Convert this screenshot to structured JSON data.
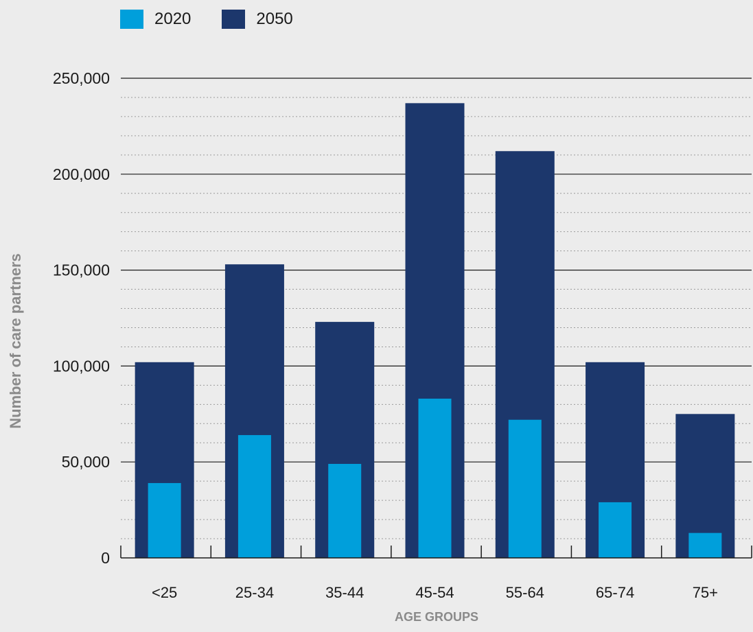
{
  "chart_data": {
    "type": "bar",
    "title": "",
    "xlabel": "AGE GROUPS",
    "ylabel": "Number of care partners",
    "categories": [
      "<25",
      "25-34",
      "35-44",
      "45-54",
      "55-64",
      "65-74",
      "75+"
    ],
    "series": [
      {
        "name": "2020",
        "color": "#009fdb",
        "values": [
          39000,
          64000,
          49000,
          83000,
          72000,
          29000,
          13000
        ]
      },
      {
        "name": "2050",
        "color": "#1c376c",
        "values": [
          102000,
          153000,
          123000,
          237000,
          212000,
          102000,
          75000
        ]
      }
    ],
    "ylim": [
      0,
      250000
    ],
    "y_ticks": [
      0,
      50000,
      100000,
      150000,
      200000,
      250000
    ],
    "y_tick_labels": [
      "0",
      "50,000",
      "100,000",
      "150,000",
      "200,000",
      "250,000"
    ],
    "y_minor_step": 10000,
    "grid": true,
    "bar_layout": "overlapped",
    "legend_position": "top-left"
  }
}
